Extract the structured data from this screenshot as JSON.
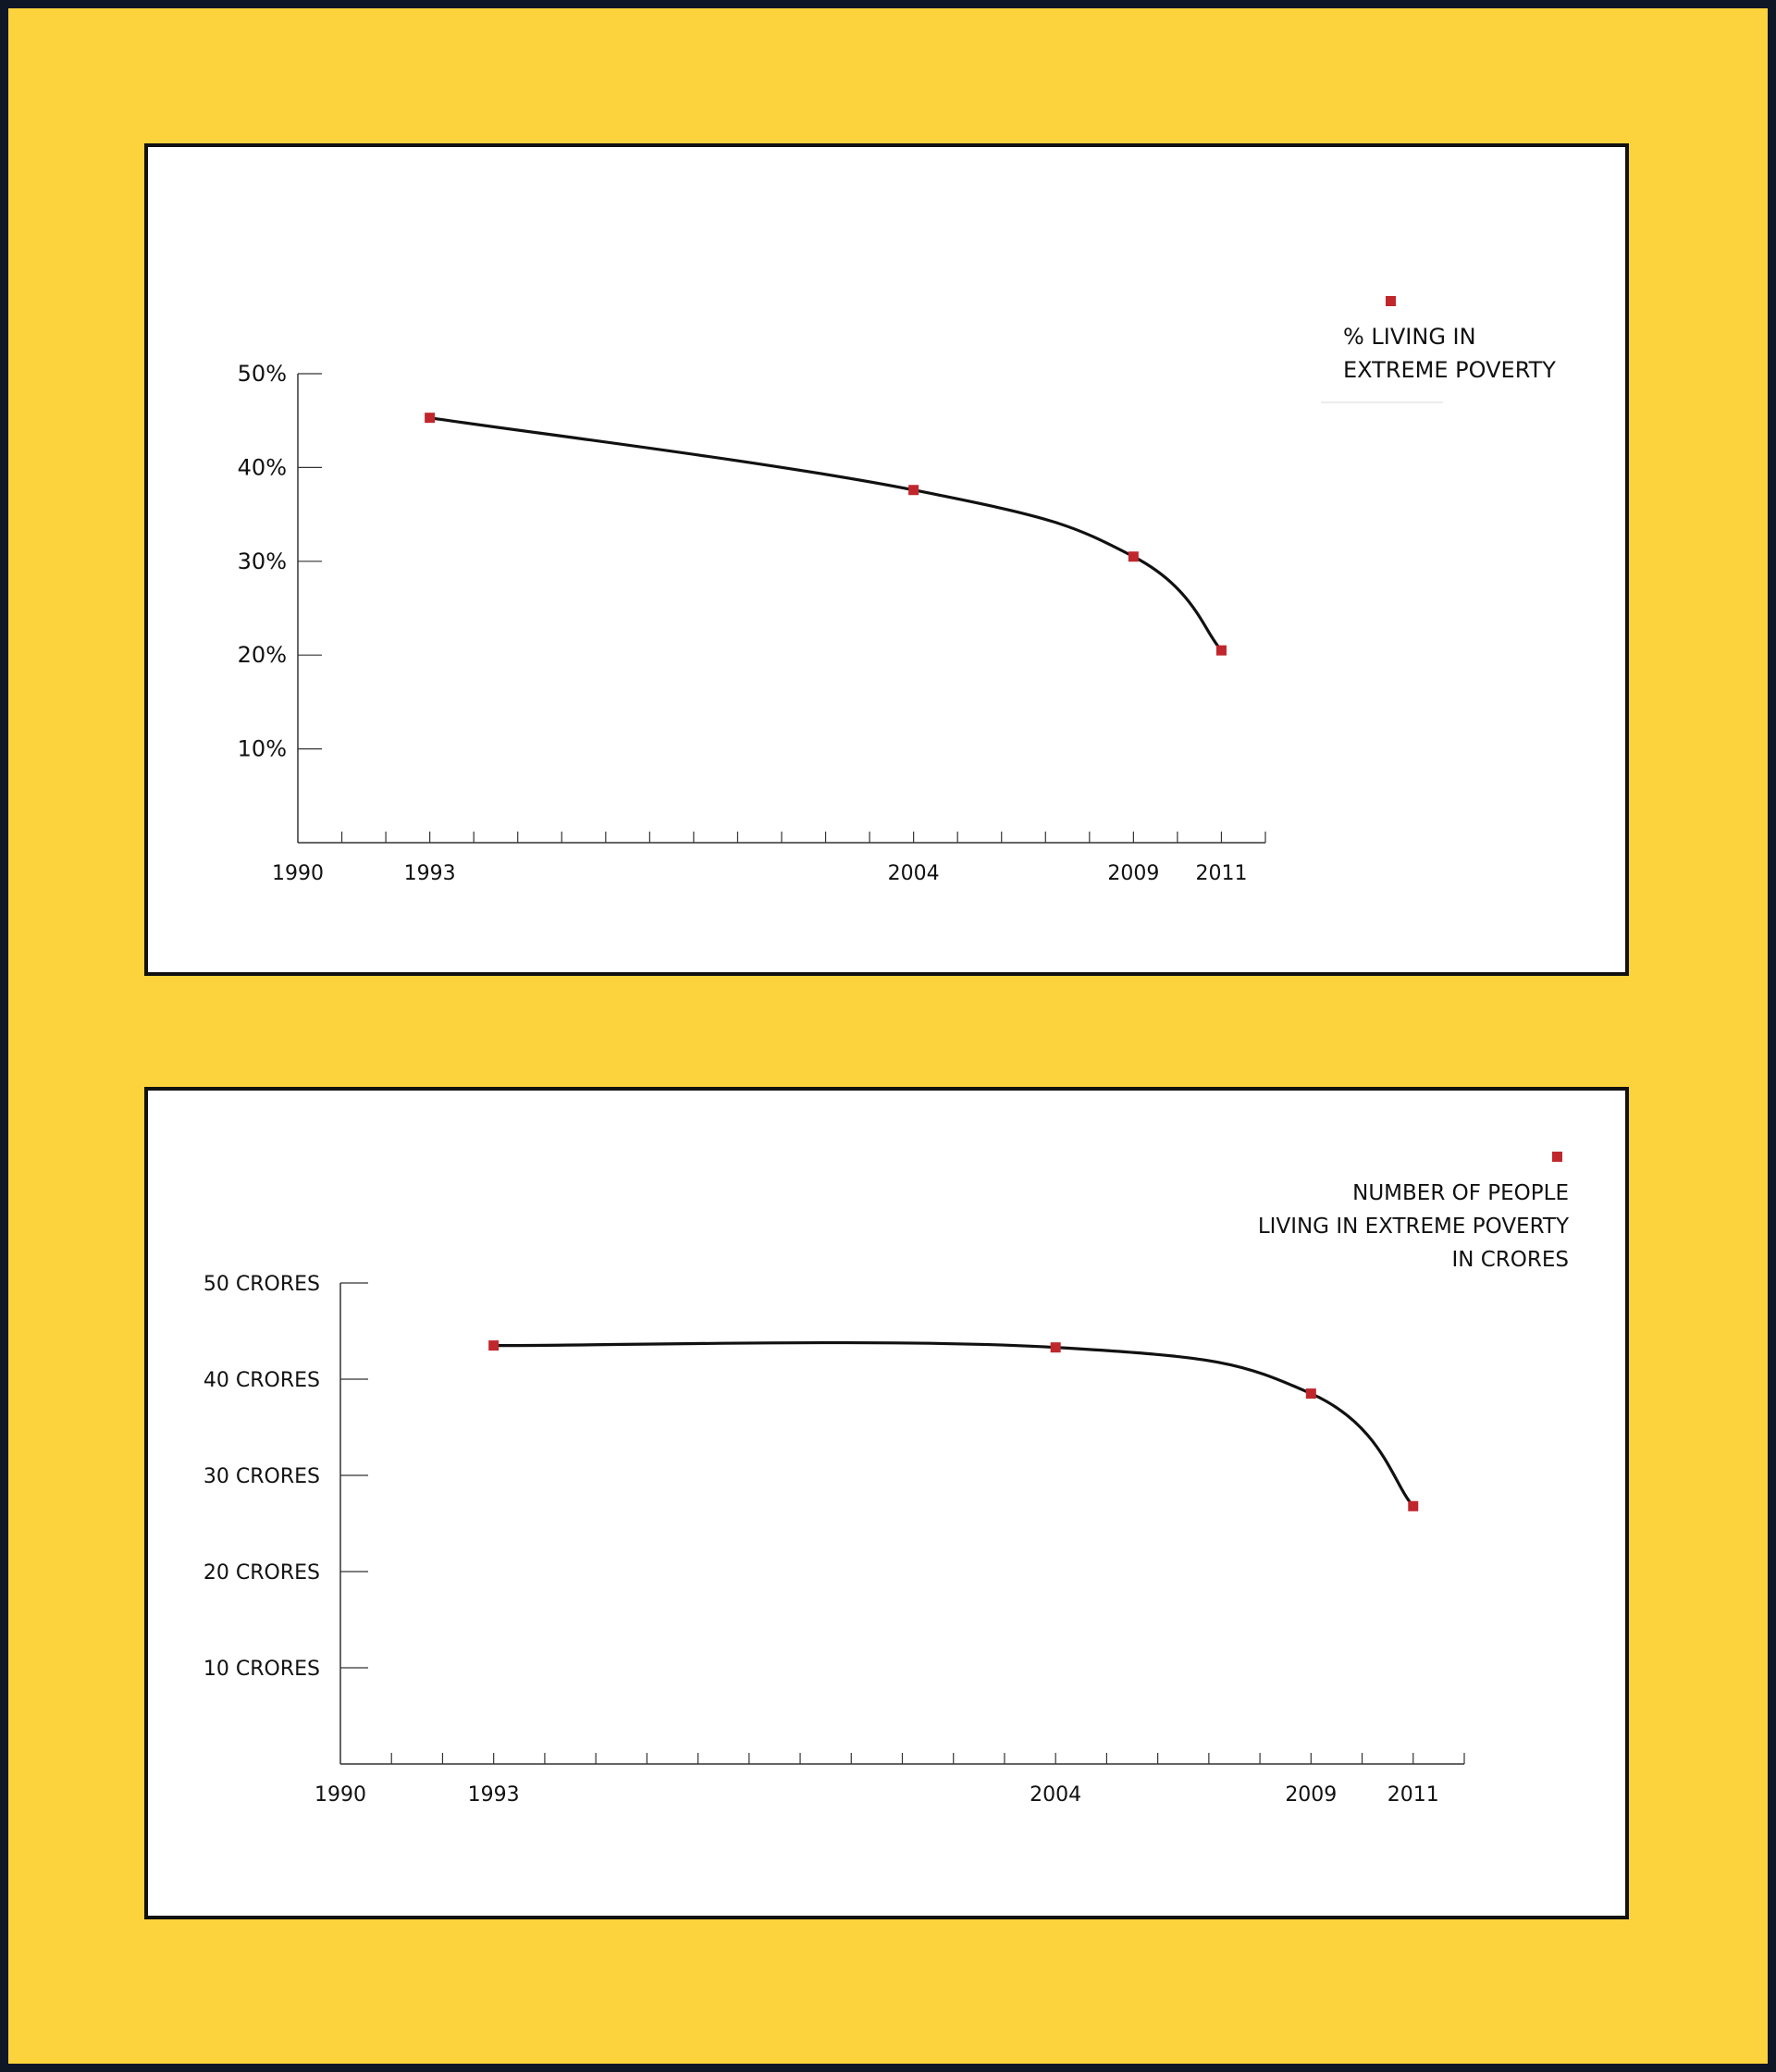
{
  "colors": {
    "background": "#FDD33D",
    "panel": "#ffffff",
    "line": "#111111",
    "marker": "#C0272D",
    "axis": "#333333"
  },
  "chart_data": [
    {
      "type": "line",
      "series": [
        {
          "name": "% LIVING IN EXTREME POVERTY",
          "x": [
            1993,
            2004,
            2009,
            2011
          ],
          "y": [
            45.3,
            37.6,
            30.5,
            20.5
          ]
        }
      ],
      "legend": {
        "lines": [
          "% LIVING IN",
          "EXTREME POVERTY"
        ],
        "position": "top-right",
        "align": "left"
      },
      "xlim": [
        1990,
        2012
      ],
      "x_ticks": [
        1990,
        1993,
        2004,
        2009,
        2011
      ],
      "x_minor_step": 1,
      "ylim": [
        0,
        50
      ],
      "y_ticks": [
        10,
        20,
        30,
        40,
        50
      ],
      "y_tick_labels": [
        "10%",
        "20%",
        "30%",
        "40%",
        "50%"
      ],
      "grid": false
    },
    {
      "type": "line",
      "series": [
        {
          "name": "NUMBER OF PEOPLE LIVING IN EXTREME POVERTY IN CRORES",
          "x": [
            1993,
            2004,
            2009,
            2011
          ],
          "y": [
            43.5,
            43.3,
            38.5,
            26.8
          ]
        }
      ],
      "legend": {
        "lines": [
          "NUMBER OF PEOPLE",
          "LIVING IN EXTREME POVERTY",
          "IN CRORES"
        ],
        "position": "top-right",
        "align": "right"
      },
      "xlim": [
        1990,
        2012
      ],
      "x_ticks": [
        1990,
        1993,
        2004,
        2009,
        2011
      ],
      "x_minor_step": 1,
      "ylim": [
        0,
        50
      ],
      "y_ticks": [
        10,
        20,
        30,
        40,
        50
      ],
      "y_tick_labels": [
        "10 CRORES",
        "20 CRORES",
        "30 CRORES",
        "40 CRORES",
        "50 CRORES"
      ],
      "grid": false
    }
  ]
}
